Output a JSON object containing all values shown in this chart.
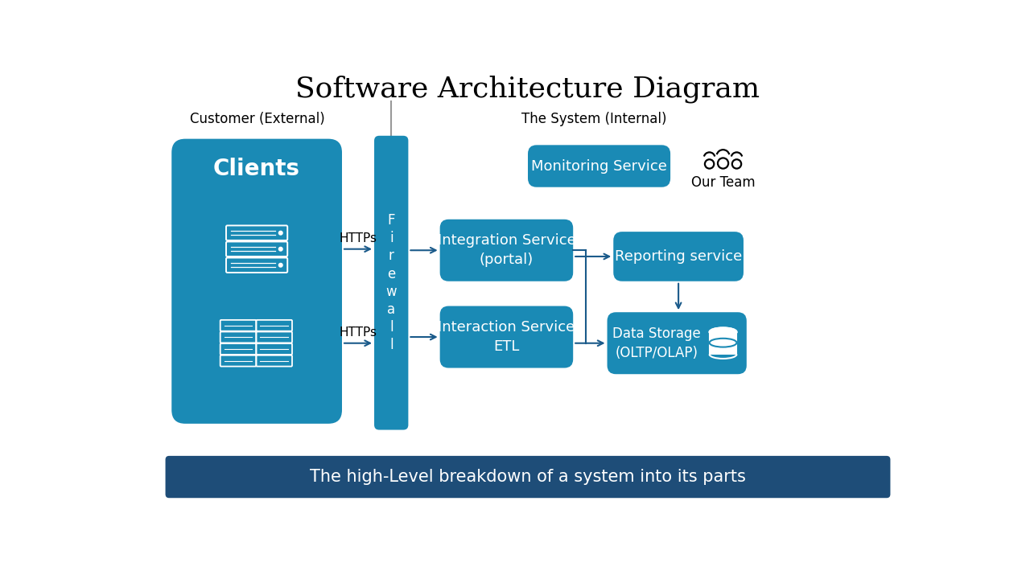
{
  "title": "Software Architecture Diagram",
  "title_fontsize": 26,
  "title_font": "serif",
  "bg_color": "#ffffff",
  "box_color": "#1a8ab5",
  "footer_color": "#1e4d78",
  "footer_text": "The high-Level breakdown of a system into its parts",
  "footer_text_color": "#ffffff",
  "clients_label": "Clients",
  "customer_label": "Customer (External)",
  "system_label": "The System (Internal)",
  "firewall_label": "F\ni\nr\ne\nw\na\nl\nl",
  "monitoring_label": "Monitoring Service",
  "our_team_label": "Our Team",
  "integration_label": "Integration Service\n(portal)",
  "reporting_label": "Reporting service",
  "interaction_label": "Interaction Service\nETL",
  "datastorage_label": "Data Storage\n(OLTP/OLAP)",
  "https_label": "HTTPs",
  "arrow_color": "#1a5a8a",
  "line_color": "#1a5a8a",
  "gray_line": "#999999"
}
